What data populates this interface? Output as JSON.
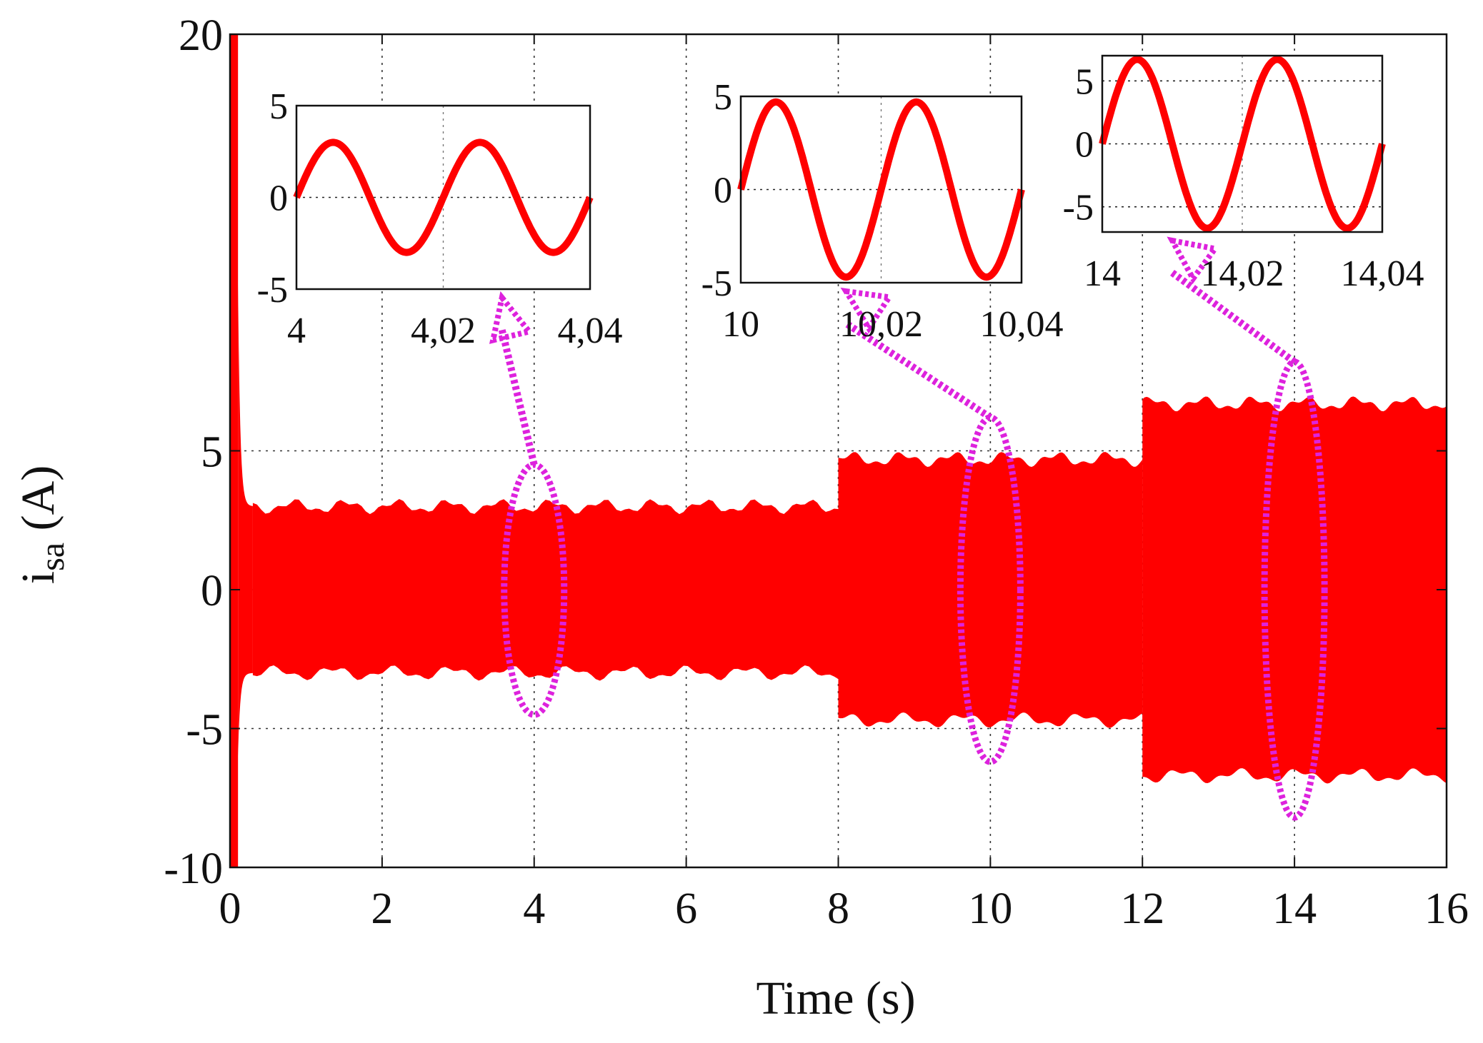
{
  "chart_data": {
    "type": "line",
    "title": "",
    "xlabel": "Time (s)",
    "ylabel_main": "i",
    "ylabel_sub": "sa",
    "ylabel_unit": " (A)",
    "xlim": [
      0,
      16
    ],
    "ylim": [
      -10,
      20
    ],
    "xticks": [
      0,
      2,
      4,
      6,
      8,
      10,
      12,
      14,
      16
    ],
    "xtick_labels": [
      "0",
      "2",
      "4",
      "6",
      "8",
      "10",
      "12",
      "14",
      "16"
    ],
    "yticks": [
      -10,
      -5,
      0,
      5,
      20
    ],
    "ytick_labels": [
      "-10",
      "-5",
      "0",
      "5",
      "20"
    ],
    "grid": "dotted",
    "series": [
      {
        "name": "i_sa",
        "color": "#ff0000",
        "frequency_hz": 50,
        "segments": [
          {
            "t_start": 0.3,
            "t_end": 8.0,
            "amplitude": 3.0
          },
          {
            "t_start": 8.0,
            "t_end": 12.0,
            "amplitude": 4.7
          },
          {
            "t_start": 12.0,
            "t_end": 16.0,
            "amplitude": 6.7
          }
        ],
        "startup": {
          "t_end": 0.3,
          "peak_max": 20,
          "peak_min": -10
        }
      }
    ],
    "annotation_color": "#dd22dd",
    "insets": [
      {
        "name": "inset-4s",
        "xlim": [
          4.0,
          4.04
        ],
        "ylim": [
          -5,
          5
        ],
        "xticks": [
          4.0,
          4.02,
          4.04
        ],
        "xtick_labels": [
          "4",
          "4,02",
          "4,04"
        ],
        "yticks": [
          -5,
          0,
          5
        ],
        "ytick_labels": [
          "-5",
          "0",
          "5"
        ],
        "amplitude": 3.0,
        "peak_time": 4.005,
        "target_time": 4.0,
        "ellipse_amp": 3.0
      },
      {
        "name": "inset-10s",
        "xlim": [
          10.0,
          10.04
        ],
        "ylim": [
          -5,
          5
        ],
        "xticks": [
          10.0,
          10.02,
          10.04
        ],
        "xtick_labels": [
          "10",
          "10,02",
          "10,04"
        ],
        "yticks": [
          -5,
          0,
          5
        ],
        "ytick_labels": [
          "-5",
          "0",
          "5"
        ],
        "amplitude": 4.7,
        "peak_time": 10.005,
        "target_time": 10.0,
        "ellipse_amp": 4.7
      },
      {
        "name": "inset-14s",
        "xlim": [
          14.0,
          14.04
        ],
        "ylim": [
          -7,
          7
        ],
        "xticks": [
          14.0,
          14.02,
          14.04
        ],
        "xtick_labels": [
          "14",
          "14,02",
          "14,04"
        ],
        "yticks": [
          -5,
          0,
          5
        ],
        "ytick_labels": [
          "-5",
          "0",
          "5"
        ],
        "amplitude": 6.7,
        "peak_time": 14.005,
        "target_time": 14.0,
        "ellipse_amp": 6.7
      }
    ]
  }
}
